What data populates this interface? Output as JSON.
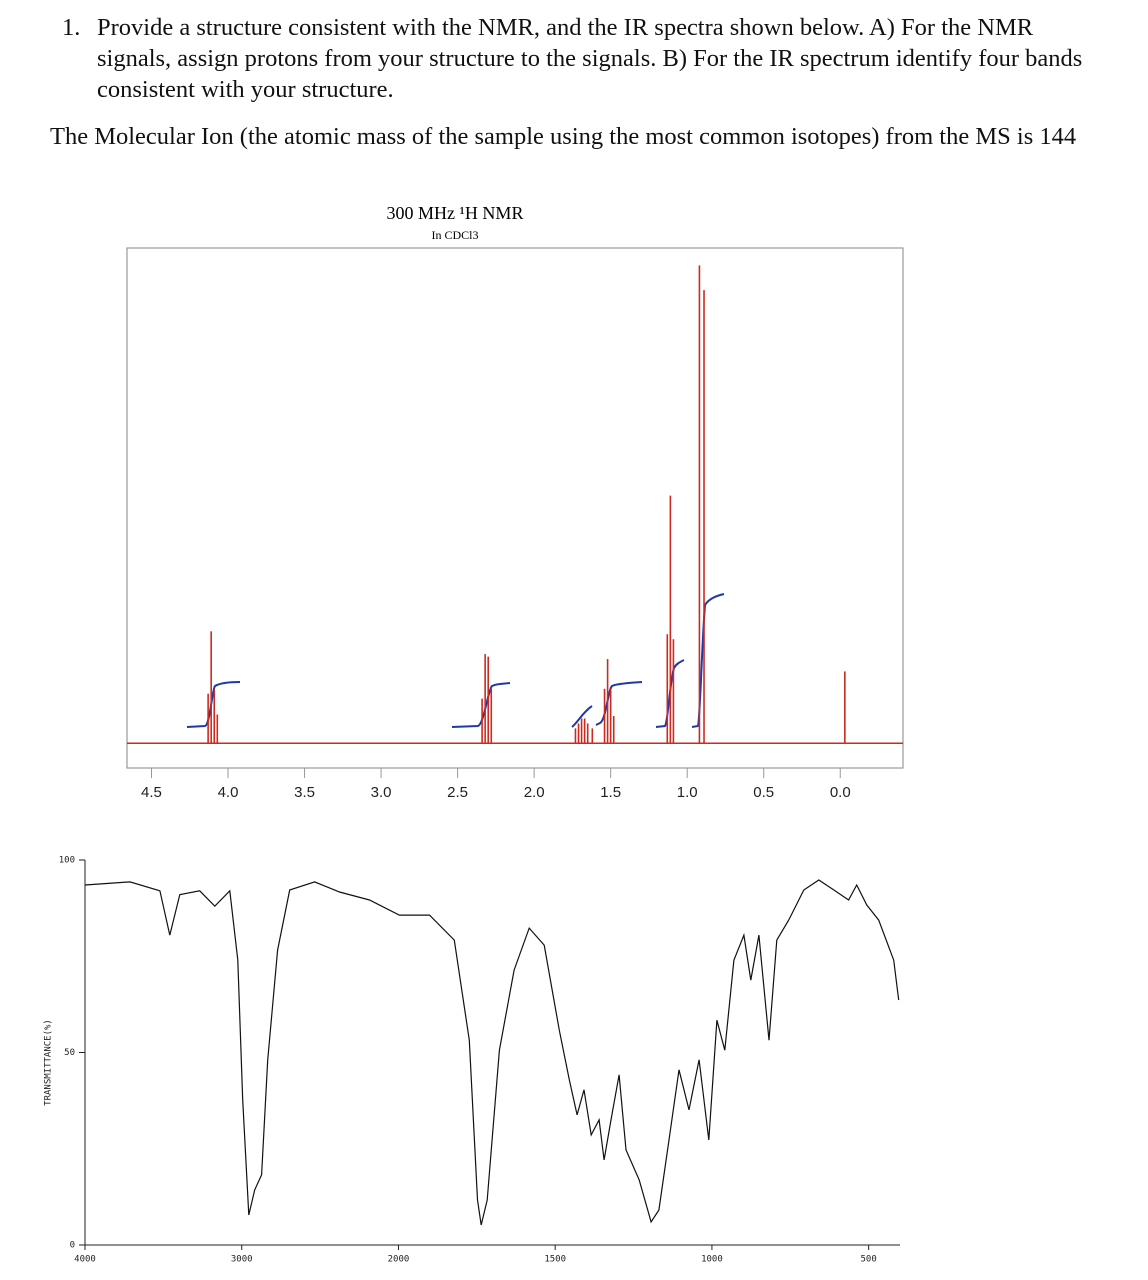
{
  "question": {
    "number": "1.",
    "text": "Provide a structure consistent with the NMR, and the IR spectra shown below.  A) For the NMR signals, assign protons from your structure to the signals. B) For the IR spectrum identify four bands consistent with your structure."
  },
  "note": "The Molecular Ion (the atomic mass of the sample using the most common isotopes) from the MS is 144",
  "chart_data": [
    {
      "type": "stem",
      "title": "300  MHz  ¹H NMR",
      "subtitle": "In CDCl3",
      "color": "#cc2a1e",
      "x": [
        4.13,
        4.11,
        4.09,
        4.07,
        2.34,
        2.32,
        2.3,
        2.28,
        1.73,
        1.71,
        1.69,
        1.67,
        1.65,
        1.62,
        1.54,
        1.52,
        1.5,
        1.48,
        1.13,
        1.11,
        1.09,
        0.92,
        0.89,
        -0.03
      ],
      "values": [
        10,
        22.6,
        10.8,
        5.8,
        9,
        18,
        17.5,
        11,
        3,
        4,
        5,
        5,
        4,
        3,
        11,
        17,
        11,
        5.5,
        22,
        50,
        21,
        96.5,
        91.5,
        14.5
      ],
      "xlim": [
        4.66,
        -0.41
      ],
      "ylim": [
        -5,
        100
      ],
      "xticks": [
        4.5,
        {
          "value": 4,
          "label": "4.0"
        },
        3.5,
        {
          "value": 3,
          "label": "3.0"
        },
        2.5,
        {
          "value": 2,
          "label": "2.0"
        },
        1.5,
        {
          "value": 1,
          "label": "1.0"
        },
        0.5,
        {
          "value": 0,
          "label": "0.0"
        }
      ]
    },
    {
      "type": "line",
      "y_label": "TRANSMITTANCE(%)",
      "color": "#111111",
      "x": [
        4000,
        3713,
        3522,
        3459,
        3395,
        3268,
        3172,
        3076,
        3025,
        2994,
        2955,
        2917,
        2873,
        2834,
        2771,
        2694,
        2535,
        2376,
        2185,
        1997,
        1901,
        1822,
        1774,
        1748,
        1736,
        1717,
        1678,
        1631,
        1583,
        1535,
        1487,
        1455,
        1430,
        1408,
        1385,
        1360,
        1344,
        1322,
        1296,
        1274,
        1232,
        1194,
        1169,
        1137,
        1105,
        1073,
        1041,
        1010,
        984,
        959,
        930,
        898,
        876,
        850,
        818,
        793,
        755,
        707,
        659,
        611,
        564,
        538,
        506,
        468,
        420,
        404
      ],
      "values": [
        93.5,
        94.3,
        92,
        80.5,
        91,
        92,
        88,
        92,
        74,
        37.7,
        7.8,
        14.3,
        18.2,
        48,
        76.6,
        92.2,
        94.3,
        91.7,
        89.6,
        85.7,
        85.7,
        79.2,
        53.2,
        11.7,
        5.2,
        11.7,
        50.6,
        71.4,
        82.3,
        77.9,
        55.8,
        42.9,
        33.8,
        40.3,
        28.6,
        32.5,
        22.1,
        32.5,
        44.2,
        24.7,
        16.9,
        6,
        9.1,
        27.3,
        45.5,
        35.1,
        48.1,
        27.3,
        58.4,
        50.6,
        74,
        80.5,
        68.8,
        80.5,
        53.2,
        79.2,
        84.4,
        92.2,
        94.8,
        92.2,
        89.6,
        93.5,
        88.3,
        84.4,
        74,
        63.6
      ],
      "xlim": [
        4000,
        400
      ],
      "xscale": {
        "break": 2000,
        "ratio": 2
      },
      "xticks": [
        4000,
        3000,
        2000,
        1500,
        1000,
        500
      ],
      "ylim": [
        0,
        100
      ],
      "yticks": [
        0,
        50,
        100
      ]
    }
  ]
}
